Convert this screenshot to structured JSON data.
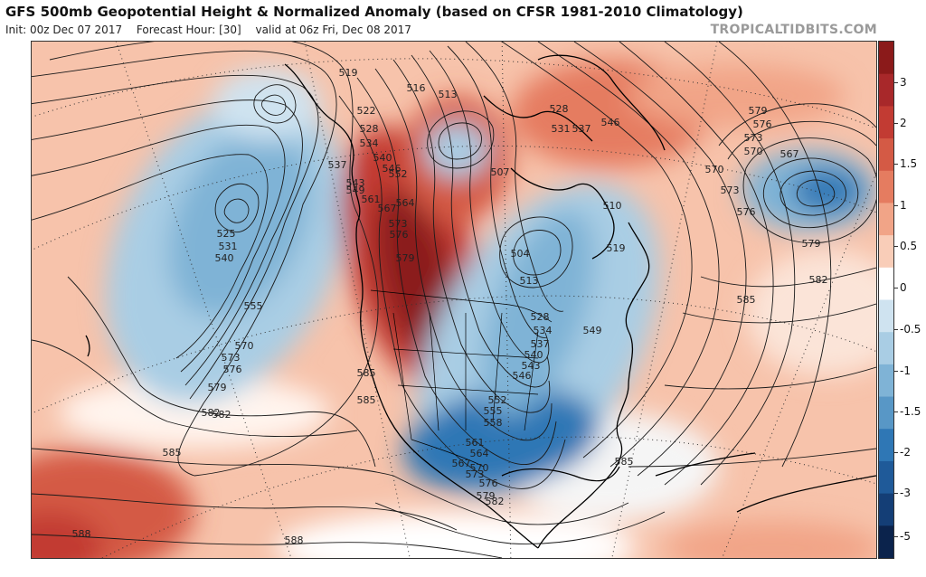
{
  "header": {
    "title": "GFS 500mb Geopotential Height & Normalized Anomaly (based on CFSR 1981-2010 Climatology)",
    "init": "Init: 00z Dec 07 2017",
    "forecast_hour": "Forecast Hour: [30]",
    "valid": "valid at 06z Fri, Dec 08 2017",
    "watermark": "TROPICALTIDBITS.COM"
  },
  "map": {
    "region": "North America and adjacent Pacific and Atlantic",
    "contour_unit_label_examples": [
      "504",
      "507",
      "510",
      "513",
      "516",
      "519",
      "522",
      "525",
      "528",
      "531",
      "534",
      "537",
      "540",
      "543",
      "546",
      "549",
      "552",
      "555",
      "558",
      "561",
      "564",
      "567",
      "570",
      "573",
      "576",
      "579",
      "582",
      "585",
      "588"
    ],
    "contour_labels": [
      {
        "text": "519"
      },
      {
        "text": "516"
      },
      {
        "text": "513"
      },
      {
        "text": "522"
      },
      {
        "text": "528"
      },
      {
        "text": "534"
      },
      {
        "text": "540"
      },
      {
        "text": "537"
      },
      {
        "text": "546"
      },
      {
        "text": "543"
      },
      {
        "text": "552"
      },
      {
        "text": "549"
      },
      {
        "text": "561"
      },
      {
        "text": "567"
      },
      {
        "text": "564"
      },
      {
        "text": "573"
      },
      {
        "text": "576"
      },
      {
        "text": "579"
      },
      {
        "text": "525"
      },
      {
        "text": "531"
      },
      {
        "text": "540"
      },
      {
        "text": "555"
      },
      {
        "text": "570"
      },
      {
        "text": "573"
      },
      {
        "text": "576"
      },
      {
        "text": "579"
      },
      {
        "text": "582"
      },
      {
        "text": "585"
      },
      {
        "text": "588"
      },
      {
        "text": "588"
      },
      {
        "text": "507"
      },
      {
        "text": "504"
      },
      {
        "text": "510"
      },
      {
        "text": "519"
      },
      {
        "text": "513"
      },
      {
        "text": "528"
      },
      {
        "text": "534"
      },
      {
        "text": "537"
      },
      {
        "text": "540"
      },
      {
        "text": "543"
      },
      {
        "text": "546"
      },
      {
        "text": "549"
      },
      {
        "text": "552"
      },
      {
        "text": "555"
      },
      {
        "text": "558"
      },
      {
        "text": "561"
      },
      {
        "text": "564"
      },
      {
        "text": "567"
      },
      {
        "text": "570"
      },
      {
        "text": "573"
      },
      {
        "text": "576"
      },
      {
        "text": "579"
      },
      {
        "text": "582"
      },
      {
        "text": "585"
      },
      {
        "text": "585"
      },
      {
        "text": "585"
      },
      {
        "text": "528"
      },
      {
        "text": "531"
      },
      {
        "text": "537"
      },
      {
        "text": "546"
      },
      {
        "text": "579"
      },
      {
        "text": "576"
      },
      {
        "text": "573"
      },
      {
        "text": "570"
      },
      {
        "text": "567"
      },
      {
        "text": "570"
      },
      {
        "text": "573"
      },
      {
        "text": "576"
      },
      {
        "text": "579"
      },
      {
        "text": "582"
      },
      {
        "text": "585"
      },
      {
        "text": "582"
      }
    ]
  },
  "colorbar": {
    "ticks": [
      "3",
      "2",
      "1.5",
      "1",
      "0.5",
      "0",
      "-0.5",
      "-1",
      "-1.5",
      "-2",
      "-3",
      "-5"
    ],
    "colors": [
      "#8b1a1a",
      "#a8282a",
      "#c23b33",
      "#d45a45",
      "#e57c60",
      "#f1a487",
      "#f9cdb8",
      "#ffffff",
      "#cfe3f0",
      "#a9cde4",
      "#7fb3d6",
      "#5897c6",
      "#2f77b5",
      "#1f5a99",
      "#143e76",
      "#0b234c"
    ]
  }
}
